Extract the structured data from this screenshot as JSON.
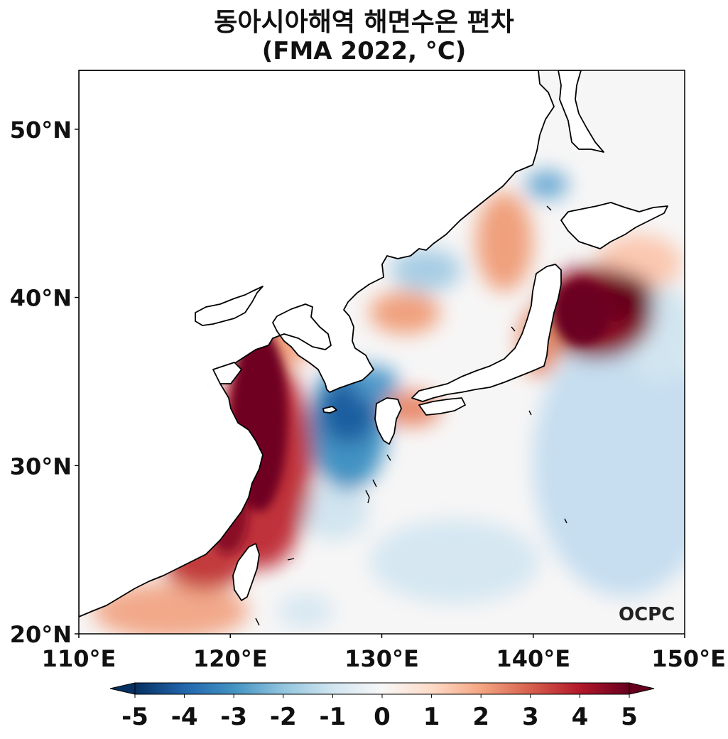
{
  "title": {
    "line1": "동아시아해역 해면수온 편차",
    "line2": "(FMA 2022, °C)"
  },
  "map": {
    "lon_range": [
      110,
      150
    ],
    "lat_range": [
      20,
      53.5
    ],
    "xticks": [
      {
        "lon": 110,
        "label": "110°E"
      },
      {
        "lon": 120,
        "label": "120°E"
      },
      {
        "lon": 130,
        "label": "130°E"
      },
      {
        "lon": 140,
        "label": "140°E"
      },
      {
        "lon": 150,
        "label": "150°E"
      }
    ],
    "yticks": [
      {
        "lat": 20,
        "label": "20°N"
      },
      {
        "lat": 30,
        "label": "30°N"
      },
      {
        "lat": 40,
        "label": "40°N"
      },
      {
        "lat": 50,
        "label": "50°N"
      }
    ],
    "field": "sea surface temperature anomaly",
    "colormap": "RdBu_r",
    "logo": "OCPC"
  },
  "colorbar": {
    "range": [
      -5,
      5
    ],
    "ticks": [
      "-5",
      "-4",
      "-3",
      "-2",
      "-1",
      "0",
      "1",
      "2",
      "3",
      "4",
      "5"
    ],
    "extend": "both",
    "colors": {
      "neg5": "#053061",
      "neg3": "#2166ac",
      "neg2": "#4393c3",
      "neg1": "#92c5de",
      "zero": "#f7f7f7",
      "pos1": "#fddbc7",
      "pos2": "#f4a582",
      "pos3": "#d6604d",
      "pos4": "#b2182b",
      "pos5": "#67001f"
    }
  }
}
